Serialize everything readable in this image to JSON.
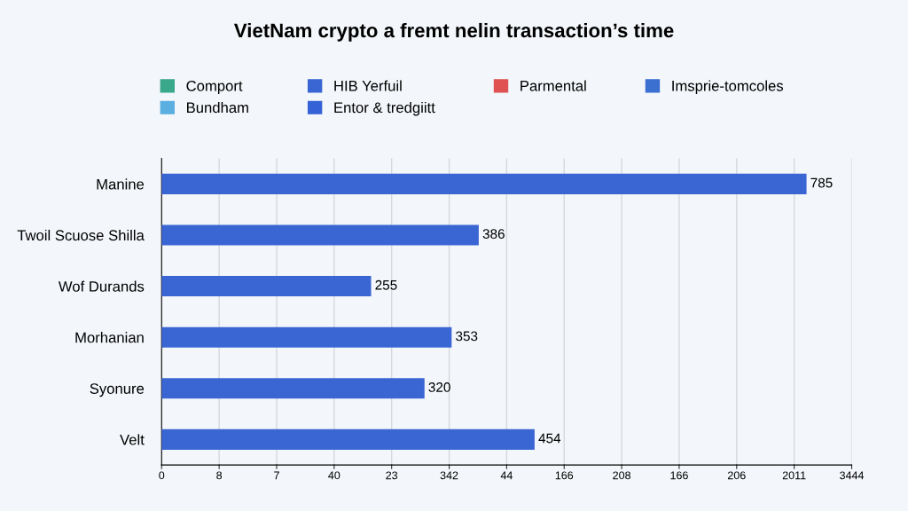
{
  "chart_data": {
    "type": "bar",
    "orientation": "horizontal",
    "title": "VietNam crypto a fremt nelin transaction’s time",
    "categories": [
      "Manine",
      "Twoil Scuose Shilla",
      "Wof Durands",
      "Morhanian",
      "Syonure",
      "Velt"
    ],
    "series": [
      {
        "name": "Comport",
        "color": "#3aa88a",
        "values": [
          null,
          null,
          null,
          null,
          null,
          null
        ]
      },
      {
        "name": "HIB Yerfuil",
        "color": "#3a66d4",
        "values": [
          785,
          386,
          255,
          353,
          320,
          454
        ]
      },
      {
        "name": "Parmental",
        "color": "#e05252",
        "values": [
          null,
          null,
          null,
          null,
          null,
          null
        ]
      },
      {
        "name": "Imsprie-tomcoles",
        "color": "#3b6fd0",
        "values": [
          null,
          null,
          null,
          null,
          null,
          null
        ]
      },
      {
        "name": "Bundham",
        "color": "#5aaee0",
        "values": [
          null,
          null,
          null,
          null,
          null,
          null
        ]
      },
      {
        "name": "Entor & tredgiitt",
        "color": "#3562d6",
        "values": [
          null,
          null,
          null,
          null,
          null,
          null
        ]
      }
    ],
    "xlim": [
      0,
      840
    ],
    "tick_labels": "y",
    "annotations": [
      "0",
      "8",
      "7",
      "40",
      "23",
      "342",
      "44",
      "166",
      "208",
      "166",
      "206",
      "2011",
      "3444"
    ],
    "data_labels": true,
    "grid": "x",
    "legend": "top"
  }
}
